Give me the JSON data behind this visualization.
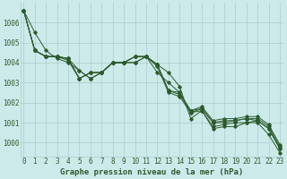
{
  "title": "Graphe pression niveau de la mer (hPa)",
  "background_color": "#cceaea",
  "grid_color": "#aacccc",
  "line_color": "#2d5a2d",
  "series": [
    [
      1006.6,
      1005.5,
      1004.6,
      1004.2,
      1004.0,
      1003.6,
      1003.2,
      1003.5,
      1004.0,
      1004.0,
      1004.0,
      1004.3,
      1003.9,
      1003.5,
      1002.8,
      1001.2,
      1001.6,
      1000.7,
      1000.8,
      1000.8,
      1001.0,
      1001.0,
      1000.4,
      999.5
    ],
    [
      1006.6,
      1004.6,
      1004.3,
      1004.3,
      1004.2,
      1003.6,
      1003.2,
      1003.5,
      1004.0,
      1004.0,
      1004.0,
      1004.3,
      1003.5,
      1003.0,
      1002.5,
      1001.5,
      1001.7,
      1001.0,
      1001.0,
      1001.1,
      1001.2,
      1001.1,
      1000.7,
      999.7
    ],
    [
      1006.6,
      1004.6,
      1004.3,
      1004.3,
      1004.1,
      1003.2,
      1003.5,
      1003.5,
      1004.0,
      1004.0,
      1004.3,
      1004.3,
      1003.8,
      1002.5,
      1002.3,
      1001.5,
      1001.6,
      1000.8,
      1000.9,
      1001.0,
      1001.0,
      1001.1,
      1000.7,
      999.7
    ],
    [
      1006.6,
      1004.6,
      1004.3,
      1004.3,
      1004.2,
      1003.2,
      1003.5,
      1003.5,
      1004.0,
      1004.0,
      1004.3,
      1004.3,
      1003.9,
      1002.6,
      1002.4,
      1001.6,
      1001.7,
      1001.0,
      1001.1,
      1001.1,
      1001.2,
      1001.2,
      1000.8,
      999.8
    ],
    [
      1006.6,
      1004.6,
      1004.3,
      1004.3,
      1004.2,
      1003.2,
      1003.5,
      1003.5,
      1004.0,
      1004.0,
      1004.3,
      1004.3,
      1003.9,
      1002.6,
      1002.5,
      1001.6,
      1001.8,
      1001.1,
      1001.2,
      1001.2,
      1001.3,
      1001.3,
      1000.9,
      999.9
    ]
  ],
  "xlim": [
    -0.3,
    23.3
  ],
  "ylim": [
    999.3,
    1007.0
  ],
  "yticks": [
    1000,
    1001,
    1002,
    1003,
    1004,
    1005,
    1006
  ],
  "xticks": [
    0,
    1,
    2,
    3,
    4,
    5,
    6,
    7,
    8,
    9,
    10,
    11,
    12,
    13,
    14,
    15,
    16,
    17,
    18,
    19,
    20,
    21,
    22,
    23
  ],
  "xtick_labels": [
    "0",
    "1",
    "2",
    "3",
    "4",
    "5",
    "6",
    "7",
    "8",
    "9",
    "10",
    "11",
    "12",
    "13",
    "14",
    "15",
    "16",
    "17",
    "18",
    "19",
    "20",
    "21",
    "22",
    "23"
  ],
  "font_color": "#2d5a2d",
  "tick_fontsize": 5.5,
  "label_fontsize": 6.5
}
